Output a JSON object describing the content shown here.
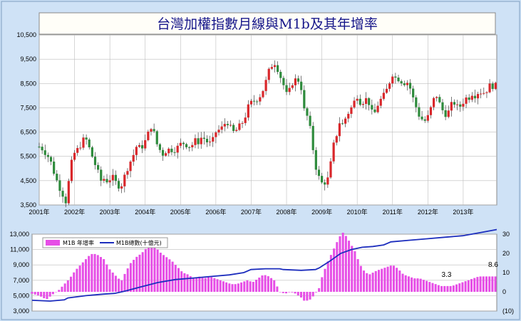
{
  "chart_data": [
    {
      "type": "candlestick",
      "title": "台灣加權指數月線與M1b及其年增率",
      "ylim": [
        3500,
        10500
      ],
      "yticks": [
        "3,500",
        "4,500",
        "5,500",
        "6,500",
        "7,500",
        "8,500",
        "9,500",
        "10,500"
      ],
      "ytick_values": [
        3500,
        4500,
        5500,
        6500,
        7500,
        8500,
        9500,
        10500
      ],
      "xticks": [
        "2001年",
        "2002年",
        "2003年",
        "2004年",
        "2005年",
        "2006年",
        "2007年",
        "2008年",
        "2009年",
        "2010年",
        "2011年",
        "2012年",
        "2013年"
      ],
      "xlim": [
        2001.0,
        2013.95
      ],
      "up_color": "#d9262a",
      "down_color": "#2e8b3c",
      "grid": true,
      "close_path": [
        [
          2001.0,
          5900
        ],
        [
          2001.1,
          5800
        ],
        [
          2001.2,
          5600
        ],
        [
          2001.3,
          5400
        ],
        [
          2001.45,
          4700
        ],
        [
          2001.55,
          4300
        ],
        [
          2001.65,
          4000
        ],
        [
          2001.75,
          3650
        ],
        [
          2001.85,
          4600
        ],
        [
          2001.95,
          5550
        ],
        [
          2002.1,
          5800
        ],
        [
          2002.2,
          6050
        ],
        [
          2002.3,
          6300
        ],
        [
          2002.45,
          5700
        ],
        [
          2002.55,
          5300
        ],
        [
          2002.65,
          4900
        ],
        [
          2002.75,
          4500
        ],
        [
          2002.85,
          4600
        ],
        [
          2002.95,
          4450
        ],
        [
          2003.05,
          4700
        ],
        [
          2003.15,
          4450
        ],
        [
          2003.25,
          4300
        ],
        [
          2003.35,
          4350
        ],
        [
          2003.45,
          4850
        ],
        [
          2003.55,
          5200
        ],
        [
          2003.65,
          5500
        ],
        [
          2003.75,
          5900
        ],
        [
          2003.85,
          5850
        ],
        [
          2003.95,
          5950
        ],
        [
          2004.05,
          6300
        ],
        [
          2004.15,
          6700
        ],
        [
          2004.2,
          6800
        ],
        [
          2004.3,
          6100
        ],
        [
          2004.4,
          5800
        ],
        [
          2004.5,
          5600
        ],
        [
          2004.6,
          5750
        ],
        [
          2004.7,
          5800
        ],
        [
          2004.8,
          5750
        ],
        [
          2004.9,
          5850
        ],
        [
          2005.0,
          6000
        ],
        [
          2005.1,
          6050
        ],
        [
          2005.2,
          5950
        ],
        [
          2005.3,
          5900
        ],
        [
          2005.4,
          6150
        ],
        [
          2005.5,
          6100
        ],
        [
          2005.6,
          6300
        ],
        [
          2005.7,
          6200
        ],
        [
          2005.8,
          6000
        ],
        [
          2005.9,
          6100
        ],
        [
          2006.0,
          6500
        ],
        [
          2006.1,
          6600
        ],
        [
          2006.2,
          6700
        ],
        [
          2006.3,
          7000
        ],
        [
          2006.4,
          6700
        ],
        [
          2006.5,
          6500
        ],
        [
          2006.6,
          6600
        ],
        [
          2006.7,
          6800
        ],
        [
          2006.8,
          7000
        ],
        [
          2006.9,
          7500
        ],
        [
          2007.0,
          7700
        ],
        [
          2007.1,
          7800
        ],
        [
          2007.2,
          7900
        ],
        [
          2007.3,
          8100
        ],
        [
          2007.4,
          8500
        ],
        [
          2007.5,
          9000
        ],
        [
          2007.6,
          9300
        ],
        [
          2007.65,
          9400
        ],
        [
          2007.75,
          9100
        ],
        [
          2007.85,
          8700
        ],
        [
          2007.9,
          8500
        ],
        [
          2007.95,
          8300
        ],
        [
          2008.05,
          7800
        ],
        [
          2008.1,
          8400
        ],
        [
          2008.2,
          8600
        ],
        [
          2008.3,
          8700
        ],
        [
          2008.4,
          8500
        ],
        [
          2008.5,
          7400
        ],
        [
          2008.6,
          7100
        ],
        [
          2008.7,
          6400
        ],
        [
          2008.75,
          5800
        ],
        [
          2008.85,
          4900
        ],
        [
          2008.95,
          4500
        ],
        [
          2009.05,
          4300
        ],
        [
          2009.1,
          4500
        ],
        [
          2009.2,
          4600
        ],
        [
          2009.3,
          5800
        ],
        [
          2009.4,
          6300
        ],
        [
          2009.5,
          6900
        ],
        [
          2009.6,
          6800
        ],
        [
          2009.7,
          7200
        ],
        [
          2009.8,
          7400
        ],
        [
          2009.9,
          7700
        ],
        [
          2010.0,
          8000
        ],
        [
          2010.1,
          7700
        ],
        [
          2010.2,
          7800
        ],
        [
          2010.3,
          7900
        ],
        [
          2010.4,
          7300
        ],
        [
          2010.5,
          7300
        ],
        [
          2010.6,
          7700
        ],
        [
          2010.7,
          7900
        ],
        [
          2010.8,
          8100
        ],
        [
          2010.9,
          8500
        ],
        [
          2011.0,
          8900
        ],
        [
          2011.1,
          8700
        ],
        [
          2011.2,
          8700
        ],
        [
          2011.3,
          8500
        ],
        [
          2011.4,
          8600
        ],
        [
          2011.5,
          8300
        ],
        [
          2011.6,
          7800
        ],
        [
          2011.65,
          7600
        ],
        [
          2011.75,
          7200
        ],
        [
          2011.85,
          7000
        ],
        [
          2011.95,
          6950
        ],
        [
          2012.05,
          7300
        ],
        [
          2012.15,
          7800
        ],
        [
          2012.25,
          8000
        ],
        [
          2012.35,
          7600
        ],
        [
          2012.45,
          7300
        ],
        [
          2012.55,
          7200
        ],
        [
          2012.65,
          7600
        ],
        [
          2012.75,
          7700
        ],
        [
          2012.85,
          7500
        ],
        [
          2012.95,
          7600
        ],
        [
          2013.05,
          7900
        ],
        [
          2013.15,
          7900
        ],
        [
          2013.25,
          8100
        ],
        [
          2013.35,
          8000
        ],
        [
          2013.45,
          8200
        ],
        [
          2013.55,
          8100
        ],
        [
          2013.65,
          8200
        ],
        [
          2013.75,
          8400
        ],
        [
          2013.85,
          8400
        ],
        [
          2013.92,
          8400
        ]
      ]
    },
    {
      "type": "bar+line",
      "left_ylim": [
        3000,
        13000
      ],
      "left_yticks": [
        "3,000",
        "5,000",
        "7,000",
        "9,000",
        "11,000",
        "13,000"
      ],
      "left_ytick_values": [
        3000,
        5000,
        7000,
        9000,
        11000,
        13000
      ],
      "right_ylim": [
        -10,
        30
      ],
      "right_yticks": [
        "(10)",
        "0",
        "10",
        "20",
        "30"
      ],
      "right_ytick_values": [
        -10,
        0,
        10,
        20,
        30
      ],
      "negative_tick_color": "#d9262a",
      "xlim": [
        2001.0,
        2013.95
      ],
      "series": [
        {
          "name": "M1B 年增率",
          "type": "bar",
          "axis": "right",
          "color": "#e64ee6",
          "bar_step": 0.0833,
          "path": [
            [
              2001.0,
              -1
            ],
            [
              2001.2,
              -2
            ],
            [
              2001.4,
              -4
            ],
            [
              2001.6,
              -1
            ],
            [
              2001.75,
              1
            ],
            [
              2001.9,
              4
            ],
            [
              2002.05,
              7
            ],
            [
              2002.2,
              11
            ],
            [
              2002.35,
              14
            ],
            [
              2002.5,
              17
            ],
            [
              2002.6,
              19
            ],
            [
              2002.7,
              20
            ],
            [
              2002.85,
              19
            ],
            [
              2003.0,
              17
            ],
            [
              2003.15,
              12
            ],
            [
              2003.3,
              9
            ],
            [
              2003.4,
              7
            ],
            [
              2003.5,
              6
            ],
            [
              2003.6,
              10
            ],
            [
              2003.75,
              15
            ],
            [
              2003.9,
              18
            ],
            [
              2004.05,
              20
            ],
            [
              2004.2,
              23
            ],
            [
              2004.35,
              24
            ],
            [
              2004.45,
              23
            ],
            [
              2004.6,
              20
            ],
            [
              2004.75,
              18
            ],
            [
              2004.9,
              16
            ],
            [
              2005.05,
              13
            ],
            [
              2005.2,
              10
            ],
            [
              2005.35,
              9
            ],
            [
              2005.5,
              7
            ],
            [
              2005.65,
              8
            ],
            [
              2005.8,
              7
            ],
            [
              2005.95,
              8
            ],
            [
              2006.1,
              7
            ],
            [
              2006.25,
              6
            ],
            [
              2006.4,
              5
            ],
            [
              2006.55,
              4
            ],
            [
              2006.7,
              4
            ],
            [
              2006.85,
              5
            ],
            [
              2007.0,
              6
            ],
            [
              2007.15,
              5
            ],
            [
              2007.3,
              7
            ],
            [
              2007.45,
              9
            ],
            [
              2007.6,
              8
            ],
            [
              2007.75,
              6
            ],
            [
              2007.85,
              2
            ],
            [
              2007.9,
              0
            ],
            [
              2008.05,
              -1
            ],
            [
              2008.2,
              0
            ],
            [
              2008.35,
              -1
            ],
            [
              2008.5,
              -3
            ],
            [
              2008.6,
              -5
            ],
            [
              2008.75,
              -4
            ],
            [
              2008.85,
              -2
            ],
            [
              2009.0,
              2
            ],
            [
              2009.1,
              9
            ],
            [
              2009.25,
              16
            ],
            [
              2009.4,
              22
            ],
            [
              2009.55,
              28
            ],
            [
              2009.65,
              31
            ],
            [
              2009.75,
              29
            ],
            [
              2009.85,
              26
            ],
            [
              2010.0,
              21
            ],
            [
              2010.1,
              16
            ],
            [
              2010.2,
              12
            ],
            [
              2010.3,
              10
            ],
            [
              2010.4,
              9
            ],
            [
              2010.5,
              10
            ],
            [
              2010.6,
              11
            ],
            [
              2010.75,
              12
            ],
            [
              2010.9,
              13
            ],
            [
              2011.05,
              14
            ],
            [
              2011.2,
              12
            ],
            [
              2011.35,
              9
            ],
            [
              2011.5,
              8
            ],
            [
              2011.65,
              7
            ],
            [
              2011.8,
              7
            ],
            [
              2011.95,
              6
            ],
            [
              2012.1,
              5
            ],
            [
              2012.25,
              4
            ],
            [
              2012.4,
              3
            ],
            [
              2012.55,
              3
            ],
            [
              2012.7,
              3
            ],
            [
              2012.85,
              4
            ],
            [
              2013.0,
              5
            ],
            [
              2013.15,
              6
            ],
            [
              2013.3,
              7
            ],
            [
              2013.45,
              8
            ],
            [
              2013.6,
              8
            ],
            [
              2013.75,
              8
            ],
            [
              2013.92,
              8
            ]
          ]
        },
        {
          "name": "M1B總數(十億元)",
          "type": "line",
          "axis": "left",
          "color": "#1c2dbd",
          "path": [
            [
              2001.0,
              4400
            ],
            [
              2001.5,
              4300
            ],
            [
              2001.9,
              4450
            ],
            [
              2002.0,
              4700
            ],
            [
              2002.5,
              5000
            ],
            [
              2003.0,
              5200
            ],
            [
              2003.3,
              5300
            ],
            [
              2003.6,
              5600
            ],
            [
              2004.0,
              6100
            ],
            [
              2004.5,
              6700
            ],
            [
              2005.0,
              7100
            ],
            [
              2005.5,
              7300
            ],
            [
              2006.0,
              7500
            ],
            [
              2006.5,
              7700
            ],
            [
              2006.9,
              8000
            ],
            [
              2007.1,
              8400
            ],
            [
              2007.5,
              8500
            ],
            [
              2007.9,
              8500
            ],
            [
              2008.0,
              8400
            ],
            [
              2008.5,
              8300
            ],
            [
              2008.9,
              8400
            ],
            [
              2009.0,
              8600
            ],
            [
              2009.3,
              9500
            ],
            [
              2009.6,
              10500
            ],
            [
              2009.9,
              11000
            ],
            [
              2010.2,
              11300
            ],
            [
              2010.5,
              11400
            ],
            [
              2010.8,
              11600
            ],
            [
              2011.0,
              12000
            ],
            [
              2011.5,
              12200
            ],
            [
              2012.0,
              12400
            ],
            [
              2012.5,
              12600
            ],
            [
              2013.0,
              12800
            ],
            [
              2013.5,
              13200
            ],
            [
              2013.95,
              13600
            ]
          ]
        }
      ],
      "annotations": [
        {
          "text": "3.3",
          "x": 2012.55,
          "y": 3.3
        },
        {
          "text": "8.6",
          "x": 2013.85,
          "y": 8.6
        }
      ]
    }
  ]
}
